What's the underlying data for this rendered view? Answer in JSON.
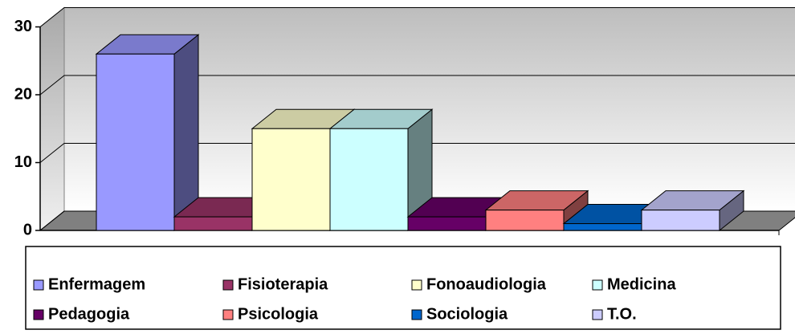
{
  "chart_data": {
    "type": "bar3d",
    "series": [
      {
        "name": "Enfermagem",
        "color": "#9999ff",
        "values": [
          26
        ]
      },
      {
        "name": "Fisioterapia",
        "color": "#993366",
        "values": [
          2
        ]
      },
      {
        "name": "Fonoaudiologia",
        "color": "#ffffcc",
        "values": [
          15
        ]
      },
      {
        "name": "Medicina",
        "color": "#ccffff",
        "values": [
          15
        ]
      },
      {
        "name": "Pedagogia",
        "color": "#660066",
        "values": [
          2
        ]
      },
      {
        "name": "Psicologia",
        "color": "#ff8080",
        "values": [
          3
        ]
      },
      {
        "name": "Sociologia",
        "color": "#0066cc",
        "values": [
          1
        ]
      },
      {
        "name": "T.O.",
        "color": "#ccccff",
        "values": [
          3
        ]
      }
    ],
    "ylim": [
      0,
      30
    ],
    "yticks": [
      0,
      10,
      20,
      30
    ],
    "grid": true,
    "legend": "bottom"
  }
}
